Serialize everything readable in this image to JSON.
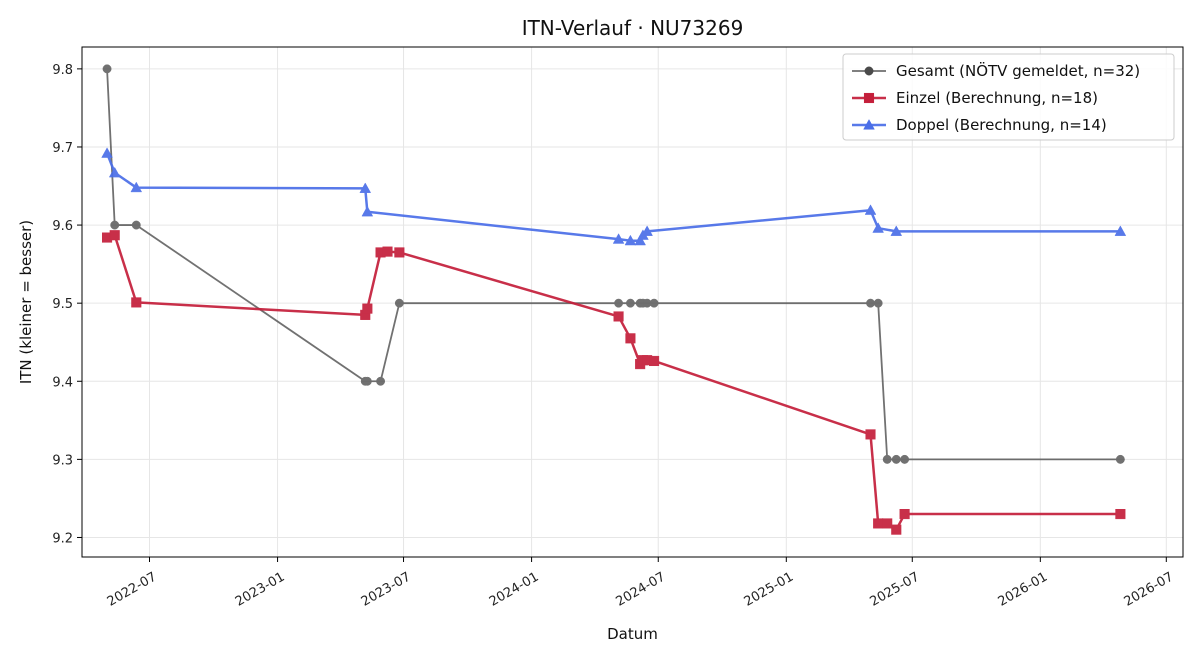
{
  "chart_data": {
    "type": "line",
    "title": "ITN-Verlauf · NU73269",
    "xlabel": "Datum",
    "ylabel": "ITN  (kleiner = besser)",
    "x_axis": {
      "kind": "date",
      "range": [
        "2022-03-26",
        "2026-07-25"
      ],
      "ticks": [
        "2022-07-01",
        "2023-01-01",
        "2023-07-01",
        "2024-01-01",
        "2024-07-01",
        "2025-01-01",
        "2025-07-01",
        "2026-01-01",
        "2026-07-01"
      ],
      "tick_labels": [
        "2022-07",
        "2023-01",
        "2023-07",
        "2024-01",
        "2024-07",
        "2025-01",
        "2025-07",
        "2026-01",
        "2026-07"
      ]
    },
    "y_axis": {
      "range": [
        9.175,
        9.828
      ],
      "ticks": [
        9.2,
        9.3,
        9.4,
        9.5,
        9.6,
        9.7,
        9.8
      ],
      "tick_labels": [
        "9.2",
        "9.3",
        "9.4",
        "9.5",
        "9.6",
        "9.7",
        "9.8"
      ]
    },
    "grid": true,
    "legend_position": "top-right",
    "series": [
      {
        "name": "Gesamt (NÖTV gemeldet, n=32)",
        "color": "#4a4a4a",
        "marker": "circle",
        "points": [
          [
            "2022-05-01",
            9.8
          ],
          [
            "2022-05-12",
            9.6
          ],
          [
            "2022-06-12",
            9.6
          ],
          [
            "2023-05-07",
            9.4
          ],
          [
            "2023-05-10",
            9.4
          ],
          [
            "2023-05-29",
            9.4
          ],
          [
            "2023-06-25",
            9.5
          ],
          [
            "2024-05-05",
            9.5
          ],
          [
            "2024-05-22",
            9.5
          ],
          [
            "2024-06-05",
            9.5
          ],
          [
            "2024-06-09",
            9.5
          ],
          [
            "2024-06-15",
            9.5
          ],
          [
            "2024-06-25",
            9.5
          ],
          [
            "2025-05-02",
            9.5
          ],
          [
            "2025-05-13",
            9.5
          ],
          [
            "2025-05-26",
            9.3
          ],
          [
            "2025-06-08",
            9.3
          ],
          [
            "2025-06-20",
            9.3
          ],
          [
            "2026-04-26",
            9.3
          ]
        ]
      },
      {
        "name": "Einzel (Berechnung, n=18)",
        "color": "#c41e3a",
        "marker": "square",
        "points": [
          [
            "2022-05-01",
            9.584
          ],
          [
            "2022-05-12",
            9.587
          ],
          [
            "2022-06-12",
            9.501
          ],
          [
            "2023-05-07",
            9.485
          ],
          [
            "2023-05-10",
            9.493
          ],
          [
            "2023-05-29",
            9.565
          ],
          [
            "2023-06-08",
            9.566
          ],
          [
            "2023-06-25",
            9.565
          ],
          [
            "2024-05-05",
            9.483
          ],
          [
            "2024-05-22",
            9.455
          ],
          [
            "2024-06-05",
            9.422
          ],
          [
            "2024-06-09",
            9.427
          ],
          [
            "2024-06-15",
            9.427
          ],
          [
            "2024-06-25",
            9.426
          ],
          [
            "2025-05-02",
            9.332
          ],
          [
            "2025-05-13",
            9.218
          ],
          [
            "2025-05-26",
            9.218
          ],
          [
            "2025-06-08",
            9.21
          ],
          [
            "2025-06-20",
            9.23
          ],
          [
            "2026-04-26",
            9.23
          ]
        ]
      },
      {
        "name": "Doppel (Berechnung, n=14)",
        "color": "#4a6ee8",
        "marker": "triangle",
        "points": [
          [
            "2022-05-01",
            9.692
          ],
          [
            "2022-05-12",
            9.667
          ],
          [
            "2022-06-12",
            9.648
          ],
          [
            "2023-05-07",
            9.647
          ],
          [
            "2023-05-10",
            9.617
          ],
          [
            "2024-05-05",
            9.582
          ],
          [
            "2024-05-22",
            9.58
          ],
          [
            "2024-06-05",
            9.58
          ],
          [
            "2024-06-09",
            9.587
          ],
          [
            "2024-06-15",
            9.592
          ],
          [
            "2025-05-02",
            9.619
          ],
          [
            "2025-05-13",
            9.596
          ],
          [
            "2025-06-08",
            9.592
          ],
          [
            "2026-04-26",
            9.592
          ]
        ]
      }
    ]
  }
}
